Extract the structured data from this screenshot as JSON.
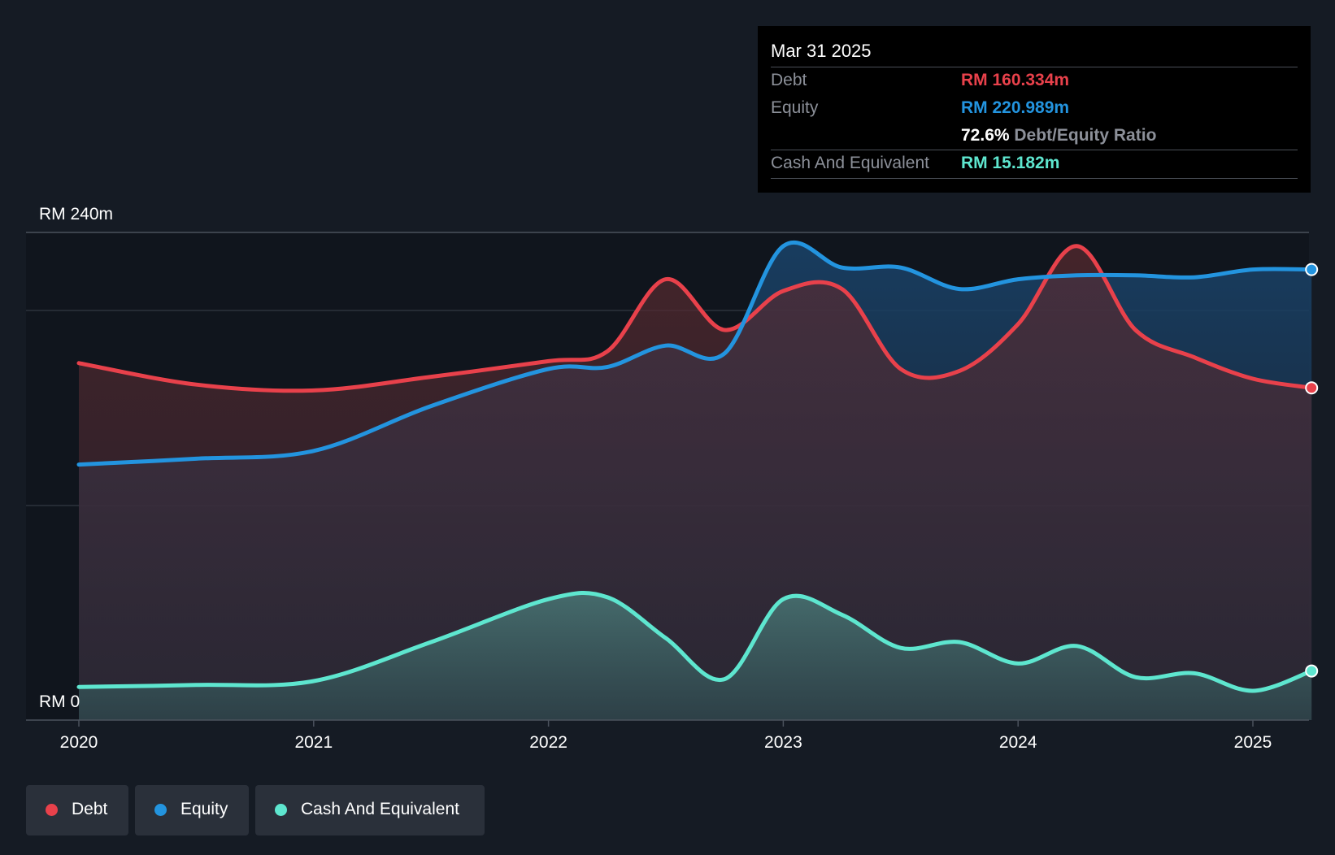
{
  "chart_data": {
    "type": "area",
    "title": "",
    "xlabel": "",
    "ylabel": "",
    "y_top_label": "RM 240m",
    "y_zero_label": "RM 0",
    "ylim": [
      0,
      240
    ],
    "x_ticks": [
      "2020",
      "2021",
      "2022",
      "2023",
      "2024",
      "2025"
    ],
    "series": [
      {
        "name": "Debt",
        "color": "#e8414b",
        "points": [
          [
            2020.0,
            173
          ],
          [
            2020.5,
            162
          ],
          [
            2021.0,
            159
          ],
          [
            2021.5,
            166
          ],
          [
            2022.0,
            174
          ],
          [
            2022.25,
            179
          ],
          [
            2022.5,
            216
          ],
          [
            2022.75,
            190
          ],
          [
            2023.0,
            210
          ],
          [
            2023.25,
            211
          ],
          [
            2023.5,
            170
          ],
          [
            2023.75,
            169
          ],
          [
            2024.0,
            193
          ],
          [
            2024.25,
            233
          ],
          [
            2024.5,
            190
          ],
          [
            2024.75,
            176
          ],
          [
            2025.0,
            165
          ],
          [
            2025.25,
            160.334
          ]
        ]
      },
      {
        "name": "Equity",
        "color": "#2394df",
        "points": [
          [
            2020.0,
            121
          ],
          [
            2020.5,
            124
          ],
          [
            2021.0,
            128
          ],
          [
            2021.5,
            151
          ],
          [
            2022.0,
            170
          ],
          [
            2022.25,
            171
          ],
          [
            2022.5,
            182
          ],
          [
            2022.75,
            178
          ],
          [
            2023.0,
            233
          ],
          [
            2023.25,
            222
          ],
          [
            2023.5,
            222
          ],
          [
            2023.75,
            211
          ],
          [
            2024.0,
            216
          ],
          [
            2024.25,
            218
          ],
          [
            2024.5,
            218
          ],
          [
            2024.75,
            217
          ],
          [
            2025.0,
            221
          ],
          [
            2025.25,
            220.989
          ]
        ]
      },
      {
        "name": "Cash And Equivalent",
        "color": "#5ee6cf",
        "points": [
          [
            2020.0,
            7
          ],
          [
            2020.5,
            8
          ],
          [
            2021.0,
            10
          ],
          [
            2021.5,
            30
          ],
          [
            2022.0,
            52
          ],
          [
            2022.25,
            53
          ],
          [
            2022.5,
            32
          ],
          [
            2022.75,
            11
          ],
          [
            2023.0,
            52
          ],
          [
            2023.25,
            44
          ],
          [
            2023.5,
            27
          ],
          [
            2023.75,
            30
          ],
          [
            2024.0,
            19
          ],
          [
            2024.25,
            28
          ],
          [
            2024.5,
            12
          ],
          [
            2024.75,
            14
          ],
          [
            2025.0,
            5
          ],
          [
            2025.25,
            15.182
          ]
        ]
      }
    ]
  },
  "tooltip": {
    "date": "Mar 31 2025",
    "debt_label": "Debt",
    "debt_value": "RM 160.334m",
    "equity_label": "Equity",
    "equity_value": "RM 220.989m",
    "ratio_value": "72.6%",
    "ratio_label": "Debt/Equity Ratio",
    "cash_label": "Cash And Equivalent",
    "cash_value": "RM 15.182m"
  },
  "legend": [
    {
      "label": "Debt",
      "color": "#e8414b"
    },
    {
      "label": "Equity",
      "color": "#2394df"
    },
    {
      "label": "Cash And Equivalent",
      "color": "#5ee6cf"
    }
  ]
}
